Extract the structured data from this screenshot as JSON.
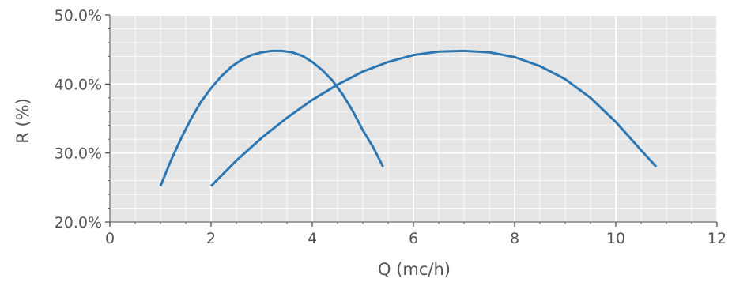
{
  "chart_data": {
    "type": "line",
    "title": "",
    "xlabel": "Q (mc/h)",
    "ylabel": "R (%)",
    "xlim": [
      0,
      12
    ],
    "ylim": [
      20,
      50
    ],
    "xticks": [
      0,
      2,
      4,
      6,
      8,
      10,
      12
    ],
    "xtick_labels": [
      "0",
      "2",
      "4",
      "6",
      "8",
      "10",
      "12"
    ],
    "yticks": [
      20,
      30,
      40,
      50
    ],
    "ytick_labels": [
      "20.0%",
      "30.0%",
      "40.0%",
      "50.0%"
    ],
    "minor_x_step": 0.5,
    "minor_y_step": 2,
    "grid": true,
    "style": {
      "background": "#e5e5e5",
      "grid_color": "#ffffff",
      "line_color": "#2b77b4",
      "text_color": "#555555"
    },
    "series": [
      {
        "x": [
          1.0,
          1.2,
          1.4,
          1.6,
          1.8,
          2.0,
          2.2,
          2.4,
          2.6,
          2.8,
          3.0,
          3.2,
          3.4,
          3.6,
          3.8,
          4.0,
          4.2,
          4.4,
          4.6,
          4.8,
          5.0,
          5.2,
          5.4
        ],
        "y": [
          25.2,
          28.8,
          32.0,
          34.9,
          37.4,
          39.4,
          41.1,
          42.5,
          43.5,
          44.2,
          44.6,
          44.8,
          44.8,
          44.6,
          44.1,
          43.2,
          42.0,
          40.5,
          38.5,
          36.1,
          33.3,
          30.9,
          28.0
        ]
      },
      {
        "x": [
          2.0,
          2.5,
          3.0,
          3.5,
          4.0,
          4.5,
          5.0,
          5.5,
          6.0,
          6.5,
          7.0,
          7.5,
          8.0,
          8.5,
          9.0,
          9.5,
          10.0,
          10.5,
          10.8
        ],
        "y": [
          25.2,
          28.9,
          32.2,
          35.1,
          37.7,
          39.9,
          41.8,
          43.2,
          44.2,
          44.7,
          44.8,
          44.6,
          43.9,
          42.6,
          40.7,
          38.0,
          34.5,
          30.4,
          28.0
        ]
      }
    ]
  }
}
